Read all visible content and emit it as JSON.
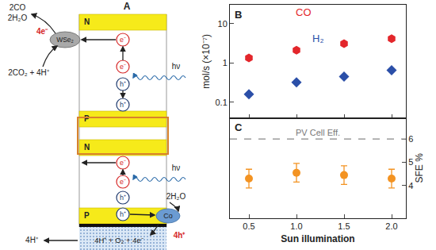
{
  "diagram": {
    "panel_label": "A",
    "layers": [
      "N",
      "P",
      "N",
      "P"
    ],
    "electron": "e⁻",
    "hole": "h⁺",
    "light": "hν",
    "cathode": {
      "catalyst": "WSe₂",
      "electrons": "4e⁻",
      "reactants": "2CO₂ + 4H⁺",
      "products": [
        "2CO",
        "2H₂O"
      ]
    },
    "anode": {
      "catalyst": "Co",
      "holes": "4h⁺",
      "reactant": "2H₂O",
      "products": "4H⁺ + O₂ + 4e⁻"
    },
    "membrane": {
      "output": "4H⁺"
    }
  },
  "chart_data": [
    {
      "panel_label": "B",
      "type": "scatter",
      "log": "y",
      "ylabel": "mol/s (×10⁻⁷)",
      "tick_labels": "y",
      "x": [
        0.5,
        1.0,
        1.5,
        2.0
      ],
      "xlim": [
        0.3,
        2.15
      ],
      "xticks": [
        {
          "value": 0.5,
          "label": "0.5"
        },
        {
          "value": 1,
          "label": "1.0"
        },
        {
          "value": 1.5,
          "label": "1.5"
        },
        {
          "value": 2,
          "label": "2.0"
        }
      ],
      "ylim": [
        0.04,
        30
      ],
      "yticks": [
        0.1,
        1,
        10
      ],
      "series": [
        {
          "name": "CO",
          "color": "#e3262b",
          "marker": "hexagon",
          "values": [
            1.33,
            2.1,
            3.1,
            4.1
          ]
        },
        {
          "name": "H₂",
          "color": "#2b4fa8",
          "marker": "diamond",
          "values": [
            0.16,
            0.32,
            0.45,
            0.65
          ]
        }
      ]
    },
    {
      "panel_label": "C",
      "type": "scatter",
      "xlabel": "Sun illumination",
      "ylabel": "SFE %",
      "x": [
        0.5,
        1.0,
        1.5,
        2.0
      ],
      "xlim": [
        0.3,
        2.15
      ],
      "xticks": [
        {
          "value": 0.5,
          "label": "0.5"
        },
        {
          "value": 1,
          "label": "1.0"
        },
        {
          "value": 1.5,
          "label": "1.5"
        },
        {
          "value": 2,
          "label": "2.0"
        }
      ],
      "ylim": [
        2.6,
        6.9
      ],
      "yticks": [
        4,
        5,
        6
      ],
      "color": "#f39322",
      "marker": "circle",
      "values": [
        4.3,
        4.55,
        4.45,
        4.3
      ],
      "errors": [
        0.4,
        0.4,
        0.4,
        0.4
      ],
      "reference_line": {
        "label": "PV Cell Eff.",
        "value": 6
      }
    }
  ]
}
